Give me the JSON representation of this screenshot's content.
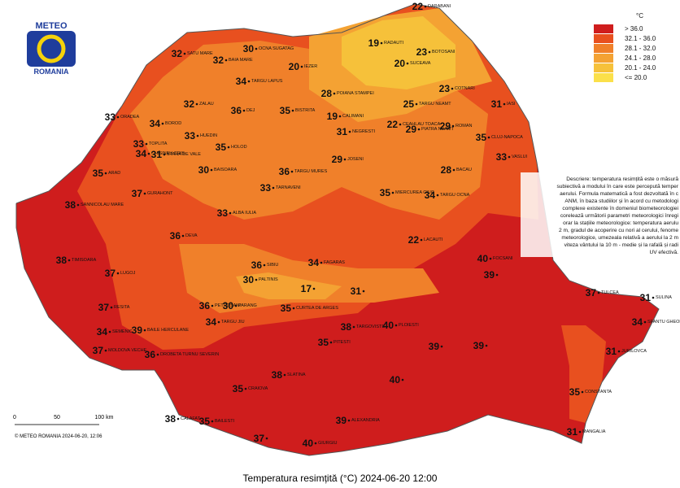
{
  "header": {
    "logo_top": "METEO",
    "logo_bottom": "ROMANIA"
  },
  "legend": {
    "unit": "°C",
    "items": [
      {
        "label": "> 36.0",
        "color": "#cf1d1d"
      },
      {
        "label": "32.1 - 36.0",
        "color": "#e8501f"
      },
      {
        "label": "28.1 - 32.0",
        "color": "#f0802a"
      },
      {
        "label": "24.1 - 28.0",
        "color": "#f4a233"
      },
      {
        "label": "20.1 - 24.0",
        "color": "#f6c13a"
      },
      {
        "label": "<= 20.0",
        "color": "#fbe04a"
      }
    ]
  },
  "stations": [
    {
      "value": 22,
      "name": "DARABANI"
    },
    {
      "value": 19,
      "name": "RADAUTI"
    },
    {
      "value": 23,
      "name": "BOTOSANI"
    },
    {
      "value": 20,
      "name": "SUCEAVA"
    },
    {
      "value": 32,
      "name": "SATU MARE"
    },
    {
      "value": 32,
      "name": "BAIA MARE"
    },
    {
      "value": 30,
      "name": "OCNA SUGATAG"
    },
    {
      "value": 20,
      "name": "IEZER"
    },
    {
      "value": 34,
      "name": "TARGU LAPUS"
    },
    {
      "value": 23,
      "name": "COTNARI"
    },
    {
      "value": 28,
      "name": "POIANA STAMPEI"
    },
    {
      "value": 25,
      "name": "TARGU NEAMT"
    },
    {
      "value": 31,
      "name": "IASI"
    },
    {
      "value": 32,
      "name": "ZALAU"
    },
    {
      "value": 35,
      "name": "BISTRITA"
    },
    {
      "value": 33,
      "name": "ORADEA"
    },
    {
      "value": 34,
      "name": "BOROD"
    },
    {
      "value": 36,
      "name": "DEJ"
    },
    {
      "value": 19,
      "name": "CALIMANI"
    },
    {
      "value": 22,
      "name": "CEAHLAU TOACA"
    },
    {
      "value": 29,
      "name": "PIATRA NEAMT"
    },
    {
      "value": 29,
      "name": "ROMAN"
    },
    {
      "value": 33,
      "name": "HUEDIN"
    },
    {
      "value": 33,
      "name": "TOPLITA"
    },
    {
      "value": 31,
      "name": "NEGRESTI"
    },
    {
      "value": 35,
      "name": "CLUJ-NAPOCA"
    },
    {
      "value": 35,
      "name": "HOLOD"
    },
    {
      "value": 34,
      "name": "CHISINEU CRIS"
    },
    {
      "value": 31,
      "name": "STANA DE VALE"
    },
    {
      "value": 29,
      "name": "JOSENI"
    },
    {
      "value": 33,
      "name": "VASLUI"
    },
    {
      "value": 35,
      "name": "ARAD"
    },
    {
      "value": 30,
      "name": "BAISOARA"
    },
    {
      "value": 36,
      "name": "TARGU MURES"
    },
    {
      "value": 28,
      "name": "BACAU"
    },
    {
      "value": 37,
      "name": "GURAHONT"
    },
    {
      "value": 33,
      "name": "TARNAVENI"
    },
    {
      "value": 35,
      "name": "MIERCUREA CIUC"
    },
    {
      "value": 34,
      "name": "TARGU OCNA"
    },
    {
      "value": 38,
      "name": "SANNICOLAU MARE"
    },
    {
      "value": 33,
      "name": "ALBA IULIA"
    },
    {
      "value": 36,
      "name": "DEVA"
    },
    {
      "value": 36,
      "name": "SIBIU"
    },
    {
      "value": 34,
      "name": "FAGARAS"
    },
    {
      "value": 22,
      "name": "LACAUTI"
    },
    {
      "value": 38,
      "name": "TIMISOARA"
    },
    {
      "value": 37,
      "name": "LUGOJ"
    },
    {
      "value": 30,
      "name": "PALTINIS"
    },
    {
      "value": 17
    },
    {
      "value": 31
    },
    {
      "value": 40,
      "name": "FOCSANI"
    },
    {
      "value": 39
    },
    {
      "value": 37,
      "name": "RESITA"
    },
    {
      "value": 36,
      "name": "PETROSANI"
    },
    {
      "value": 30,
      "name": "PARANG"
    },
    {
      "value": 35,
      "name": "CURTEA DE ARGES"
    },
    {
      "value": 34,
      "name": "SEMENIC"
    },
    {
      "value": 39,
      "name": "BAILE HERCULANE"
    },
    {
      "value": 34,
      "name": "TARGU JIU"
    },
    {
      "value": 38,
      "name": "TARGOVISTE"
    },
    {
      "value": 40,
      "name": "PLOIESTI"
    },
    {
      "value": 37,
      "name": "TULCEA"
    },
    {
      "value": 31,
      "name": "SULINA"
    },
    {
      "value": 34,
      "name": "SFANTU GHEORGHE"
    },
    {
      "value": 37,
      "name": "MOLDOVA VECHE"
    },
    {
      "value": 36,
      "name": "DROBETA TURNU SEVERIN"
    },
    {
      "value": 35,
      "name": "PITESTI"
    },
    {
      "value": 39
    },
    {
      "value": 31,
      "name": "JURILOVCA"
    },
    {
      "value": 38,
      "name": "SLATINA"
    },
    {
      "value": 35,
      "name": "CRAIOVA"
    },
    {
      "value": 35,
      "name": "CONSTANTA"
    },
    {
      "value": 38,
      "name": "CALAFAT"
    },
    {
      "value": 35,
      "name": "BAILESTI"
    },
    {
      "value": 39,
      "name": "ALEXANDRIA"
    },
    {
      "value": 40,
      "name": "GIURGIU"
    },
    {
      "value": 31,
      "name": "MANGALIA"
    },
    {
      "value": 39
    },
    {
      "value": 40
    },
    {
      "value": 37
    }
  ],
  "description": [
    "Descriere: temperatura resimțită este o măsură",
    "subiectivă a modului în care este percepută temper",
    "aerului. Formula matematică a fost dezvoltată în c",
    "ANM, în baza studiilor și în acord cu metodologi",
    "complexe existente în domeniul biometeorologiei",
    "corelează următorii parametri meteorologici înregi",
    "orar la stațiile meteorologice: temperatura aerulu",
    "2 m, gradul de acoperire cu nori al cerului, fenome",
    "meteorologice, umezeala relativă a aerului la 2 m",
    "viteza vântului la 10 m - medie și la rafală și radi",
    "UV efectivă."
  ],
  "scale": [
    "0",
    "50",
    "100 km"
  ],
  "copyright": "© METEO ROMANIA 2024-06-20, 12:06",
  "caption": "Temperatura resimțită (°C) 2024-06-20 12:00"
}
